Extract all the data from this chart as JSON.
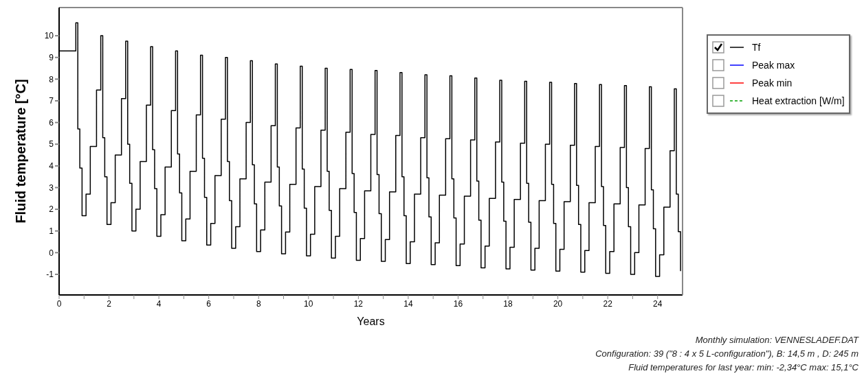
{
  "chart_data": {
    "type": "step",
    "xlabel": "Years",
    "ylabel": "Fluid temperature [°C]",
    "xlim": [
      0,
      25
    ],
    "ylim": [
      -1.95,
      11.3
    ],
    "xticks": [
      0,
      {
        "value": 1,
        "label": null
      },
      2,
      {
        "value": 3,
        "label": null
      },
      4,
      {
        "value": 5,
        "label": null
      },
      6,
      {
        "value": 7,
        "label": null
      },
      8,
      {
        "value": 9,
        "label": null
      },
      10,
      {
        "value": 11,
        "label": null
      },
      12,
      {
        "value": 13,
        "label": null
      },
      14,
      {
        "value": 15,
        "label": null
      },
      16,
      {
        "value": 17,
        "label": null
      },
      18,
      {
        "value": 19,
        "label": null
      },
      20,
      {
        "value": 21,
        "label": null
      },
      22,
      {
        "value": 23,
        "label": null
      },
      24
    ],
    "yticks": [
      -1,
      0,
      1,
      2,
      3,
      4,
      5,
      6,
      7,
      8,
      9,
      10
    ],
    "legend": "right",
    "marker": "none",
    "x": [
      0,
      0.67,
      0.75,
      0.83,
      0.92,
      1.08,
      1.25,
      1.5,
      1.67,
      1.75,
      1.83,
      1.92,
      2.08,
      2.25,
      2.5,
      2.67,
      2.75,
      2.83,
      2.92,
      3.08,
      3.25,
      3.5,
      3.67,
      3.75,
      3.83,
      3.92,
      4.08,
      4.25,
      4.5,
      4.67,
      4.75,
      4.83,
      4.92,
      5.08,
      5.25,
      5.5,
      5.67,
      5.75,
      5.83,
      5.92,
      6.08,
      6.25,
      6.5,
      6.67,
      6.75,
      6.83,
      6.92,
      7.08,
      7.25,
      7.5,
      7.67,
      7.75,
      7.83,
      7.92,
      8.08,
      8.25,
      8.5,
      8.67,
      8.75,
      8.83,
      8.92,
      9.08,
      9.25,
      9.5,
      9.67,
      9.75,
      9.83,
      9.92,
      10.08,
      10.25,
      10.5,
      10.67,
      10.75,
      10.83,
      10.92,
      11.08,
      11.25,
      11.5,
      11.67,
      11.75,
      11.83,
      11.92,
      12.08,
      12.25,
      12.5,
      12.67,
      12.75,
      12.83,
      12.92,
      13.08,
      13.25,
      13.5,
      13.67,
      13.75,
      13.83,
      13.92,
      14.08,
      14.25,
      14.5,
      14.67,
      14.75,
      14.83,
      14.92,
      15.08,
      15.25,
      15.5,
      15.67,
      15.75,
      15.83,
      15.92,
      16.08,
      16.25,
      16.5,
      16.67,
      16.75,
      16.83,
      16.92,
      17.08,
      17.25,
      17.5,
      17.67,
      17.75,
      17.83,
      17.92,
      18.08,
      18.25,
      18.5,
      18.67,
      18.75,
      18.83,
      18.92,
      19.08,
      19.25,
      19.5,
      19.67,
      19.75,
      19.83,
      19.92,
      20.08,
      20.25,
      20.5,
      20.67,
      20.75,
      20.83,
      20.92,
      21.08,
      21.25,
      21.5,
      21.67,
      21.75,
      21.83,
      21.92,
      22.08,
      22.25,
      22.5,
      22.67,
      22.75,
      22.83,
      22.92,
      23.08,
      23.25,
      23.5,
      23.67,
      23.75,
      23.83,
      23.92,
      24.08,
      24.25,
      24.5,
      24.67,
      24.75,
      24.83,
      24.92
    ],
    "series": [
      {
        "name": "Tf",
        "color": "#000000",
        "values": [
          9.3,
          10.6,
          5.7,
          3.9,
          1.7,
          2.7,
          4.9,
          7.5,
          10.0,
          5.3,
          3.5,
          1.3,
          2.3,
          4.5,
          7.1,
          9.75,
          5.0,
          3.2,
          1.0,
          2.0,
          4.2,
          6.8,
          9.5,
          4.75,
          2.95,
          0.75,
          1.75,
          3.95,
          6.55,
          9.3,
          4.55,
          2.75,
          0.55,
          1.55,
          3.75,
          6.35,
          9.1,
          4.35,
          2.55,
          0.35,
          1.35,
          3.55,
          6.15,
          9.0,
          4.2,
          2.4,
          0.2,
          1.2,
          3.4,
          6.0,
          8.85,
          4.05,
          2.25,
          0.05,
          1.05,
          3.25,
          5.85,
          8.7,
          3.95,
          2.15,
          -0.05,
          0.95,
          3.15,
          5.75,
          8.6,
          3.85,
          2.05,
          -0.15,
          0.85,
          3.05,
          5.65,
          8.5,
          3.75,
          1.95,
          -0.25,
          0.75,
          2.95,
          5.55,
          8.45,
          3.65,
          1.85,
          -0.35,
          0.65,
          2.85,
          5.45,
          8.4,
          3.6,
          1.8,
          -0.4,
          0.6,
          2.8,
          5.4,
          8.3,
          3.5,
          1.7,
          -0.5,
          0.5,
          2.7,
          5.3,
          8.2,
          3.45,
          1.65,
          -0.55,
          0.45,
          2.65,
          5.25,
          8.15,
          3.4,
          1.6,
          -0.6,
          0.4,
          2.6,
          5.2,
          8.05,
          3.3,
          1.5,
          -0.7,
          0.3,
          2.5,
          5.1,
          7.95,
          3.25,
          1.45,
          -0.75,
          0.25,
          2.45,
          5.05,
          7.9,
          3.2,
          1.4,
          -0.8,
          0.2,
          2.4,
          5.0,
          7.85,
          3.15,
          1.35,
          -0.85,
          0.15,
          2.35,
          4.95,
          7.8,
          3.1,
          1.3,
          -0.9,
          0.1,
          2.3,
          4.9,
          7.75,
          3.05,
          1.25,
          -0.95,
          0.05,
          2.25,
          4.85,
          7.7,
          3.0,
          1.2,
          -1.0,
          0.0,
          2.2,
          4.8,
          7.65,
          2.9,
          1.1,
          -1.1,
          -0.1,
          2.1,
          4.7,
          7.55,
          2.7,
          0.97,
          -0.85
        ]
      },
      {
        "name": "Peak max",
        "color": "#0000ff",
        "values": [
          null,
          null,
          null,
          null,
          null,
          null,
          null,
          null,
          null,
          null,
          null,
          null,
          null,
          null,
          null,
          null,
          null,
          null,
          null,
          null,
          null,
          null,
          null,
          null,
          null,
          null,
          null,
          null,
          null,
          null,
          null,
          null,
          null,
          null,
          null,
          null,
          null,
          null,
          null,
          null,
          null,
          null,
          null,
          null,
          null,
          null,
          null,
          null,
          null,
          null,
          null,
          null,
          null,
          null,
          null,
          null,
          null,
          null,
          null,
          null,
          null,
          null,
          null,
          null,
          null,
          null,
          null,
          null,
          null,
          null,
          null,
          null,
          null,
          null,
          null,
          null,
          null,
          null,
          null,
          null,
          null,
          null,
          null,
          null,
          null,
          null,
          null,
          null,
          null,
          null,
          null,
          null,
          null,
          null,
          null,
          null,
          null,
          null,
          null,
          null,
          null,
          null,
          null,
          null,
          null,
          null,
          null,
          null,
          null,
          null,
          null,
          null,
          null,
          null,
          null,
          null,
          null,
          null,
          null,
          null,
          null,
          null,
          null,
          null,
          null,
          null,
          null,
          null,
          null,
          null,
          null,
          null,
          null,
          null,
          null,
          null,
          null,
          null,
          null,
          null,
          null,
          null,
          null,
          null,
          null,
          null,
          null,
          null,
          null,
          null,
          null,
          null,
          null,
          null,
          null,
          null,
          null,
          null,
          null,
          null,
          null,
          null,
          null,
          null,
          null,
          null,
          null,
          null,
          null,
          null,
          null,
          null,
          null
        ]
      },
      {
        "name": "Peak min",
        "color": "#ff0000",
        "values": [
          null,
          null,
          null,
          null,
          null,
          null,
          null,
          null,
          null,
          null,
          null,
          null,
          null,
          null,
          null,
          null,
          null,
          null,
          null,
          null,
          null,
          null,
          null,
          null,
          null,
          null,
          null,
          null,
          null,
          null,
          null,
          null,
          null,
          null,
          null,
          null,
          null,
          null,
          null,
          null,
          null,
          null,
          null,
          null,
          null,
          null,
          null,
          null,
          null,
          null,
          null,
          null,
          null,
          null,
          null,
          null,
          null,
          null,
          null,
          null,
          null,
          null,
          null,
          null,
          null,
          null,
          null,
          null,
          null,
          null,
          null,
          null,
          null,
          null,
          null,
          null,
          null,
          null,
          null,
          null,
          null,
          null,
          null,
          null,
          null,
          null,
          null,
          null,
          null,
          null,
          null,
          null,
          null,
          null,
          null,
          null,
          null,
          null,
          null,
          null,
          null,
          null,
          null,
          null,
          null,
          null,
          null,
          null,
          null,
          null,
          null,
          null,
          null,
          null,
          null,
          null,
          null,
          null,
          null,
          null,
          null,
          null,
          null,
          null,
          null,
          null,
          null,
          null,
          null,
          null,
          null,
          null,
          null,
          null,
          null,
          null,
          null,
          null,
          null,
          null,
          null,
          null,
          null,
          null,
          null,
          null,
          null,
          null,
          null,
          null,
          null,
          null,
          null,
          null,
          null,
          null,
          null,
          null,
          null,
          null,
          null,
          null,
          null,
          null,
          null,
          null,
          null,
          null,
          null,
          null,
          null,
          null,
          null
        ]
      },
      {
        "name": "Heat extraction [W/m]",
        "color": "#00a000",
        "line_style": "dashed",
        "values": [
          null,
          null,
          null,
          null,
          null,
          null,
          null,
          null,
          null,
          null,
          null,
          null,
          null,
          null,
          null,
          null,
          null,
          null,
          null,
          null,
          null,
          null,
          null,
          null,
          null,
          null,
          null,
          null,
          null,
          null,
          null,
          null,
          null,
          null,
          null,
          null,
          null,
          null,
          null,
          null,
          null,
          null,
          null,
          null,
          null,
          null,
          null,
          null,
          null,
          null,
          null,
          null,
          null,
          null,
          null,
          null,
          null,
          null,
          null,
          null,
          null,
          null,
          null,
          null,
          null,
          null,
          null,
          null,
          null,
          null,
          null,
          null,
          null,
          null,
          null,
          null,
          null,
          null,
          null,
          null,
          null,
          null,
          null,
          null,
          null,
          null,
          null,
          null,
          null,
          null,
          null,
          null,
          null,
          null,
          null,
          null,
          null,
          null,
          null,
          null,
          null,
          null,
          null,
          null,
          null,
          null,
          null,
          null,
          null,
          null,
          null,
          null,
          null,
          null,
          null,
          null,
          null,
          null,
          null,
          null,
          null,
          null,
          null,
          null,
          null,
          null,
          null,
          null,
          null,
          null,
          null,
          null,
          null,
          null,
          null,
          null,
          null,
          null,
          null,
          null,
          null,
          null,
          null,
          null,
          null,
          null,
          null,
          null,
          null,
          null,
          null,
          null,
          null,
          null,
          null,
          null,
          null,
          null,
          null,
          null,
          null,
          null,
          null,
          null,
          null,
          null,
          null,
          null,
          null,
          null,
          null,
          null,
          null
        ]
      }
    ],
    "annotations": [
      "Monthly simulation: VENNESLADEF.DAT",
      "Configuration: 39 (\"8 : 4 x 5 L-configuration\"), B: 14,5 m , D: 245 m",
      "Fluid temperatures for last year: min: -2,34°C max: 15,1°C"
    ]
  }
}
